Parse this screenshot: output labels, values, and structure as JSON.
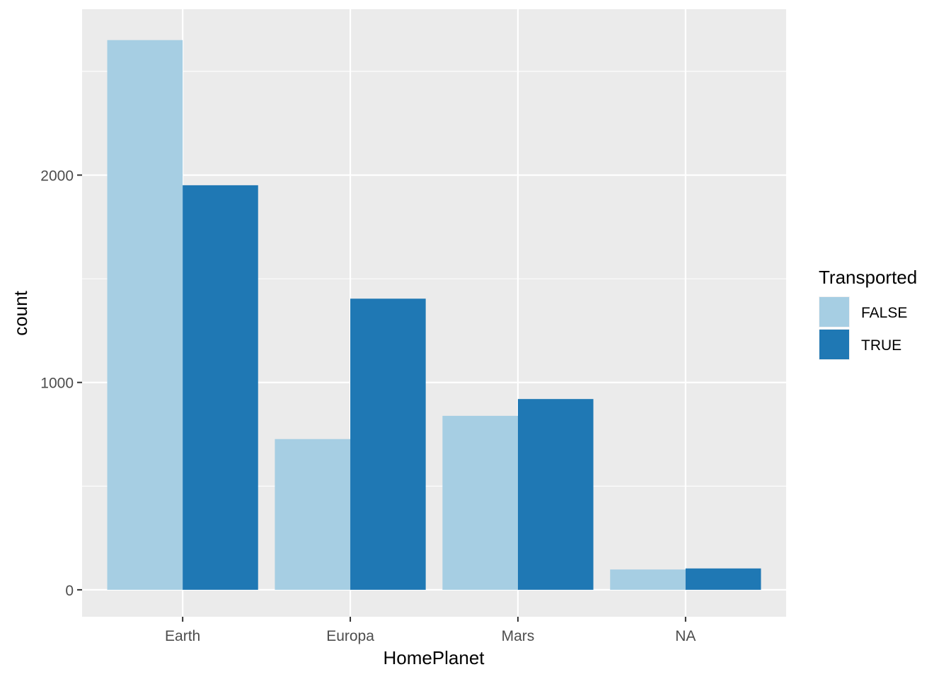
{
  "chart_data": {
    "type": "bar",
    "categories": [
      "Earth",
      "Europa",
      "Mars",
      "NA"
    ],
    "series": [
      {
        "name": "FALSE",
        "values": [
          2651,
          727,
          839,
          98
        ],
        "color": "#A6CEE3"
      },
      {
        "name": "TRUE",
        "values": [
          1951,
          1404,
          920,
          103
        ],
        "color": "#1F78B4"
      }
    ],
    "title": "",
    "xlabel": "HomePlanet",
    "ylabel": "count",
    "ylim": [
      -130,
      2800
    ],
    "yticks": [
      0,
      1000,
      2000
    ],
    "yticks_minor": [
      500,
      1500,
      2500
    ],
    "grid": true,
    "legend": {
      "title": "Transported",
      "position": "right"
    },
    "panel_background": "#EBEBEB",
    "grid_color": "#FFFFFF"
  }
}
